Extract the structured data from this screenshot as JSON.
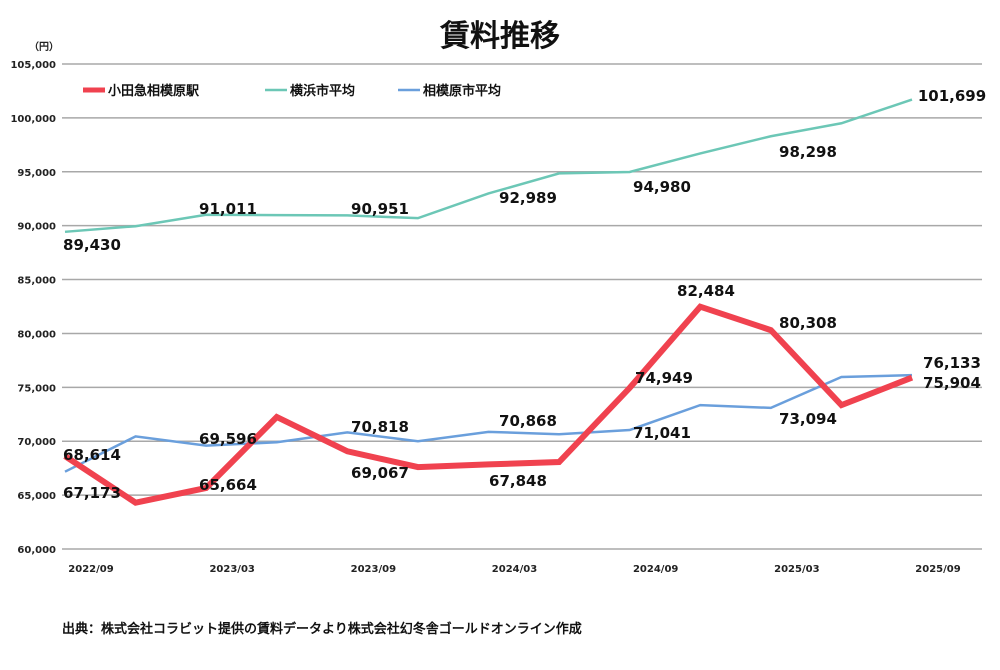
{
  "chart_data": {
    "type": "line",
    "title": "賃料推移",
    "ylabel": "（円）",
    "ylim": [
      60000,
      105000
    ],
    "yticks": [
      "60,000",
      "65,000",
      "70,000",
      "75,000",
      "80,000",
      "85,000",
      "90,000",
      "95,000",
      "100,000",
      "105,000"
    ],
    "grid": true,
    "legend_placement": "top-left",
    "x": [
      "2022/09",
      "2022/12",
      "2023/03",
      "2023/06",
      "2023/09",
      "2023/12",
      "2024/03",
      "2024/06",
      "2024/09",
      "2024/12",
      "2025/03",
      "2025/06",
      "2025/09"
    ],
    "xticks": [
      "2022/09",
      "2023/03",
      "2023/09",
      "2024/03",
      "2024/09",
      "2025/03",
      "2025/09"
    ],
    "series": [
      {
        "name": "小田急相模原駅",
        "color": "#f0424f",
        "values": [
          68614,
          64300,
          65664,
          72250,
          69067,
          67600,
          67848,
          68070,
          74949,
          82484,
          80308,
          73350,
          75904
        ],
        "labels": {
          "0": "68,614",
          "2": "65,664",
          "4": "69,067",
          "6": "67,848",
          "8": "74,949",
          "9": "82,484",
          "10": "80,308",
          "12": "75,904"
        }
      },
      {
        "name": "横浜市平均",
        "color": "#6cc7b6",
        "values": [
          89430,
          89950,
          91011,
          90980,
          90951,
          90700,
          92989,
          94850,
          94980,
          96700,
          98298,
          99500,
          101699
        ],
        "labels": {
          "0": "89,430",
          "2": "91,011",
          "4": "90,951",
          "6": "92,989",
          "8": "94,980",
          "10": "98,298",
          "12": "101,699"
        }
      },
      {
        "name": "相模原市平均",
        "color": "#6a9fdc",
        "values": [
          67173,
          70450,
          69596,
          69900,
          70818,
          70000,
          70868,
          70650,
          71041,
          73350,
          73094,
          75960,
          76133
        ],
        "labels": {
          "0": "67,173",
          "2": "69,596",
          "4": "70,818",
          "6": "70,868",
          "8": "71,041",
          "10": "73,094",
          "12": "76,133"
        }
      }
    ]
  },
  "source": "出典：株式会社コラビット提供の賃料データより株式会社幻冬舎ゴールドオンライン作成"
}
